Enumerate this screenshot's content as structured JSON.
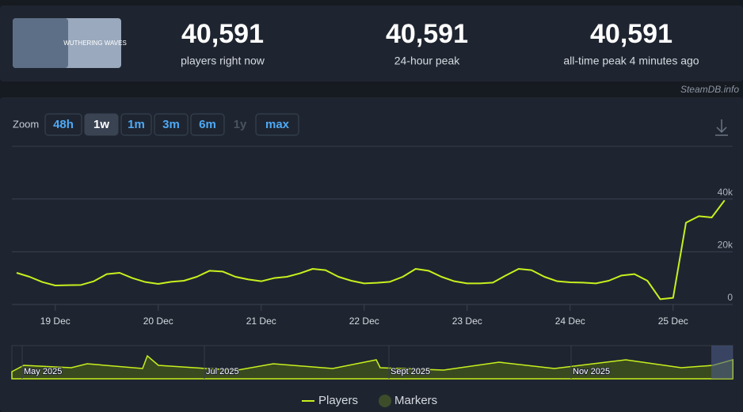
{
  "header": {
    "logo_text": "WUTHERING WAVES",
    "stats": [
      {
        "value": "40,591",
        "label": "players right now"
      },
      {
        "value": "40,591",
        "label": "24-hour peak"
      },
      {
        "value": "40,591",
        "label": "all-time peak 4 minutes ago"
      }
    ],
    "source": "SteamDB.info"
  },
  "zoom": {
    "label": "Zoom",
    "options": [
      "48h",
      "1w",
      "1m",
      "3m",
      "6m",
      "1y",
      "max"
    ],
    "active": "1w",
    "disabled": "1y"
  },
  "navigator": {
    "labels": [
      "May 2025",
      "Jul 2025",
      "Sept 2025",
      "Nov 2025"
    ]
  },
  "chart_data": {
    "type": "line",
    "categories": [
      null,
      null,
      null,
      "19 Dec",
      null,
      null,
      null,
      null,
      null,
      null,
      null,
      "20 Dec",
      null,
      null,
      null,
      null,
      null,
      null,
      null,
      "21 Dec",
      null,
      null,
      null,
      null,
      null,
      null,
      null,
      "22 Dec",
      null,
      null,
      null,
      null,
      null,
      null,
      null,
      "23 Dec",
      null,
      null,
      null,
      null,
      null,
      null,
      null,
      "24 Dec",
      null,
      null,
      null,
      null,
      null,
      null,
      null,
      "25 Dec",
      null,
      null,
      null,
      null
    ],
    "series": [
      {
        "name": "Players",
        "color": "#c8f01e",
        "values": [
          12000,
          10500,
          8500,
          7200,
          7300,
          7400,
          8800,
          11500,
          12000,
          10000,
          8500,
          7800,
          8600,
          9000,
          10500,
          12800,
          12500,
          10500,
          9500,
          8800,
          10000,
          10500,
          11800,
          13500,
          13000,
          10500,
          9000,
          8000,
          8200,
          8600,
          10500,
          13500,
          12800,
          10500,
          8800,
          8000,
          8000,
          8300,
          11000,
          13500,
          13000,
          10500,
          8800,
          8400,
          8300,
          8000,
          9000,
          11000,
          11500,
          9000,
          2000,
          2500,
          31000,
          33500,
          33000,
          39500
        ]
      }
    ],
    "markers": {
      "name": "Markers",
      "color": "#3d4d2a"
    },
    "ylim": [
      0,
      60000
    ],
    "yticks": [
      0,
      {
        "value": 20000,
        "label": "20k"
      },
      {
        "value": 40000,
        "label": "40k"
      }
    ],
    "grid": true
  }
}
